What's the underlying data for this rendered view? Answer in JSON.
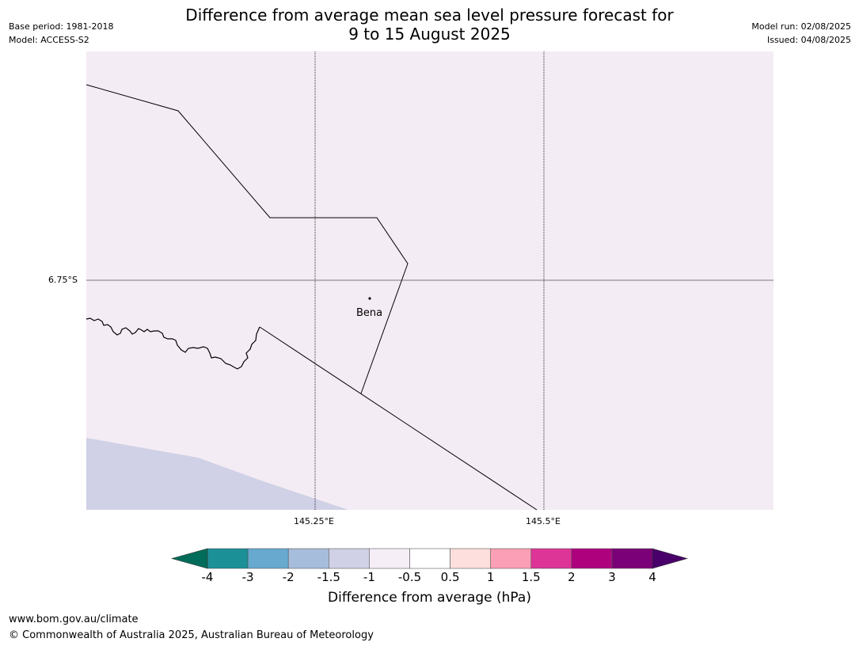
{
  "header": {
    "title_line1": "Difference from average mean sea level pressure forecast for",
    "title_line2": "9 to 15 August 2025",
    "base_period": "Base period: 1981-2018",
    "model": "Model: ACCESS-S2",
    "model_run": "Model run: 02/08/2025",
    "issued": "Issued: 04/08/2025"
  },
  "map": {
    "background_color": "#f4ecf4",
    "low_pressure_color": "#d0d1e6",
    "lat_label": "6.75°S",
    "lon_labels": [
      "145.25°E",
      "145.5°E"
    ],
    "place": {
      "name": "Bena"
    }
  },
  "colorbar": {
    "label": "Difference from average (hPa)",
    "ticks": [
      "-4",
      "-3",
      "-2",
      "-1.5",
      "-1",
      "-0.5",
      "0.5",
      "1",
      "1.5",
      "2",
      "3",
      "4"
    ],
    "colors": [
      "#1b9096",
      "#67a9cf",
      "#a6bddb",
      "#d0d1e6",
      "#f6eef7",
      "#ffffff",
      "#fde0dd",
      "#fa9fb5",
      "#dd3497",
      "#ae017e",
      "#7a0177"
    ],
    "extend_low_color": "#016c59",
    "extend_high_color": "#49006a"
  },
  "footer": {
    "url": "www.bom.gov.au/climate",
    "copyright": "© Commonwealth of Australia 2025, Australian Bureau of Meteorology"
  }
}
